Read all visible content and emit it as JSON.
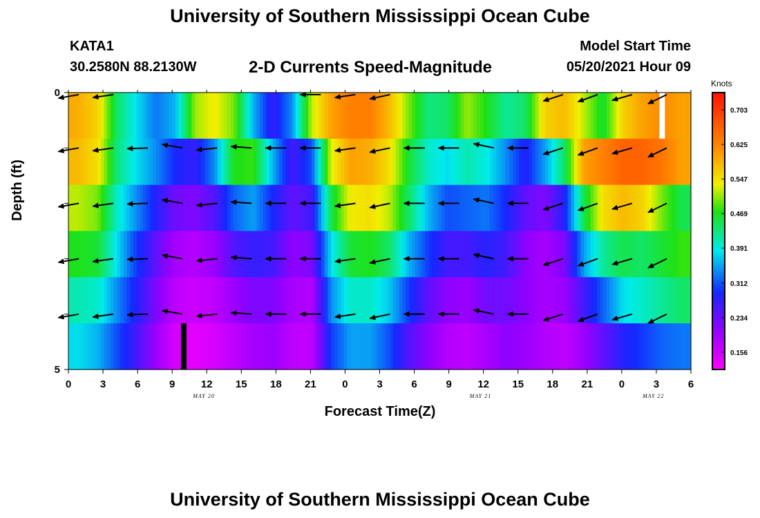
{
  "header": {
    "title": "University of Southern Mississippi Ocean Cube",
    "station": "KATA1",
    "coordinates": "30.2580N  88.2130W",
    "subtitle": "2-D Currents Speed-Magnitude",
    "model_start_label": "Model Start Time",
    "model_start_time": "05/20/2021 Hour 09"
  },
  "footer": {
    "title": "University of Southern Mississippi Ocean Cube"
  },
  "chart_data": {
    "type": "heatmap",
    "title": "2-D Currents Speed-Magnitude",
    "xlabel": "Forecast Time(Z)",
    "ylabel": "Depth (ft)",
    "x_hours": [
      0,
      3,
      6,
      9,
      12,
      15,
      18,
      21,
      24,
      27,
      30,
      33,
      36,
      39,
      42,
      45,
      48,
      51,
      54
    ],
    "x_tick_labels": [
      "0",
      "3",
      "6",
      "9",
      "12",
      "15",
      "18",
      "21",
      "0",
      "3",
      "6",
      "9",
      "12",
      "15",
      "18",
      "21",
      "0",
      "3",
      "6"
    ],
    "date_labels": [
      {
        "label": "MAY 20",
        "hour": 12
      },
      {
        "label": "MAY 21",
        "hour": 36
      },
      {
        "label": "MAY 22",
        "hour": 51
      }
    ],
    "y_range": [
      0,
      5
    ],
    "y_tick_labels": [
      "0",
      "5"
    ],
    "colorbar": {
      "unit": "Knots",
      "range": [
        0.117,
        0.742
      ],
      "tick_values": [
        0.156,
        0.234,
        0.312,
        0.391,
        0.469,
        0.547,
        0.625,
        0.703
      ],
      "tick_labels": [
        "0.156",
        "0.234",
        "0.312",
        "0.391",
        "0.469",
        "0.547",
        "0.625",
        "0.703"
      ]
    },
    "speed_rows": [
      {
        "depth_layer": 1,
        "values": [
          0.59,
          0.56,
          0.44,
          0.38,
          0.33,
          0.36,
          0.51,
          0.54,
          0.5,
          0.36,
          0.27,
          0.34,
          0.52,
          0.6,
          0.63,
          0.63,
          0.58,
          0.5,
          0.43,
          0.44,
          0.51,
          0.47,
          0.42,
          0.44,
          0.56,
          0.58,
          0.52,
          0.46,
          0.56,
          0.6,
          0.62,
          0.6
        ]
      },
      {
        "depth_layer": 2,
        "values": [
          0.58,
          0.55,
          0.43,
          0.38,
          0.34,
          0.29,
          0.27,
          0.34,
          0.47,
          0.48,
          0.36,
          0.26,
          0.31,
          0.53,
          0.6,
          0.59,
          0.55,
          0.46,
          0.4,
          0.38,
          0.41,
          0.39,
          0.34,
          0.28,
          0.35,
          0.44,
          0.6,
          0.63,
          0.66,
          0.66,
          0.64,
          0.6
        ]
      },
      {
        "depth_layer": 3,
        "values": [
          0.52,
          0.5,
          0.4,
          0.34,
          0.28,
          0.23,
          0.22,
          0.25,
          0.32,
          0.35,
          0.29,
          0.24,
          0.26,
          0.45,
          0.54,
          0.55,
          0.52,
          0.44,
          0.36,
          0.31,
          0.32,
          0.33,
          0.29,
          0.24,
          0.22,
          0.28,
          0.45,
          0.55,
          0.58,
          0.56,
          0.5,
          0.45
        ]
      },
      {
        "depth_layer": 4,
        "values": [
          0.47,
          0.46,
          0.38,
          0.3,
          0.24,
          0.19,
          0.18,
          0.2,
          0.25,
          0.27,
          0.26,
          0.21,
          0.22,
          0.38,
          0.46,
          0.47,
          0.44,
          0.36,
          0.3,
          0.26,
          0.26,
          0.28,
          0.26,
          0.21,
          0.19,
          0.22,
          0.35,
          0.42,
          0.45,
          0.44,
          0.46,
          0.48
        ]
      },
      {
        "depth_layer": 5,
        "values": [
          0.41,
          0.4,
          0.34,
          0.28,
          0.22,
          0.17,
          0.16,
          0.17,
          0.2,
          0.22,
          0.22,
          0.19,
          0.18,
          0.34,
          0.4,
          0.4,
          0.37,
          0.3,
          0.24,
          0.21,
          0.2,
          0.23,
          0.23,
          0.21,
          0.19,
          0.2,
          0.26,
          0.32,
          0.38,
          0.4,
          0.42,
          0.44
        ]
      },
      {
        "depth_layer": 6,
        "values": [
          0.38,
          0.36,
          0.31,
          0.26,
          0.2,
          0.15,
          0.14,
          0.15,
          0.17,
          0.19,
          0.2,
          0.17,
          0.17,
          0.3,
          0.35,
          0.35,
          0.31,
          0.25,
          0.21,
          0.18,
          0.17,
          0.19,
          0.21,
          0.2,
          0.18,
          0.17,
          0.2,
          0.24,
          0.28,
          0.3,
          0.32,
          0.33
        ]
      }
    ],
    "vector_columns_hours": [
      1.5,
      4.5,
      7.5,
      10.5,
      13.5,
      16.5,
      19.5,
      22.5,
      25.5,
      28.5,
      31.5,
      34.5,
      37.5,
      40.5,
      43.5,
      46.5,
      49.5,
      52.5
    ],
    "vector_depths": [
      0,
      1,
      2,
      3,
      4
    ],
    "vector_directions_deg": [
      190,
      188,
      182,
      170,
      186,
      176,
      180,
      180,
      188,
      192,
      180,
      180,
      168,
      180,
      198,
      200,
      196,
      206
    ],
    "surface_vectors_visible": [
      true,
      true,
      false,
      false,
      false,
      false,
      false,
      true,
      true,
      true,
      false,
      false,
      false,
      false,
      true,
      true,
      true,
      true
    ],
    "masked_cells": [
      {
        "label": "white",
        "hour": 51.5,
        "depth_layer": 1,
        "color": "#ffffff"
      },
      {
        "label": "black",
        "hour": 10,
        "depth_layer": 6,
        "color": "#000000"
      }
    ]
  }
}
